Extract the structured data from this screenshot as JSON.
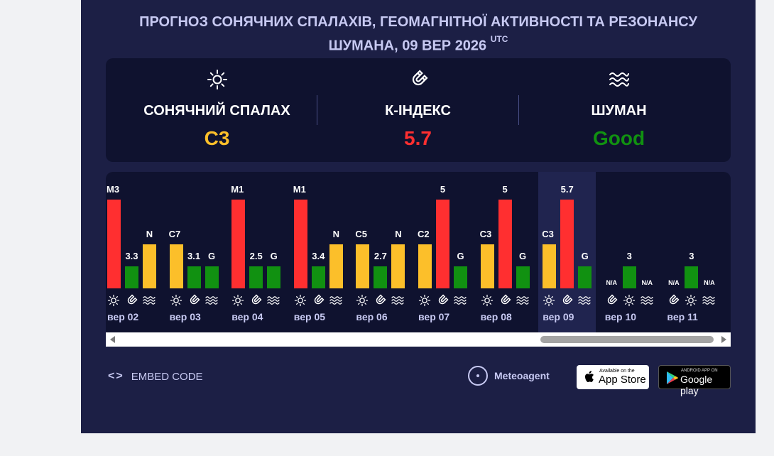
{
  "header": {
    "title_line1": "ПРОГНОЗ СОНЯЧНИХ СПАЛАХІВ, ГЕОМАГНІТНОЇ АКТИВНОСТІ ТА РЕЗОНАНСУ",
    "title_line2": "ШУМАНА, 09 ВЕР 2026",
    "utc": "UTC"
  },
  "summary": {
    "solar": {
      "label": "СОНЯЧНИЙ СПАЛАХ",
      "value": "C3",
      "color": "#fcbf2a",
      "icon": "sun-icon"
    },
    "kindex": {
      "label": "К-ІНДЕКС",
      "value": "5.7",
      "color": "#ff2f30",
      "icon": "magnet-icon"
    },
    "schumann": {
      "label": "ШУМАН",
      "value": "Good",
      "color": "#119111",
      "icon": "waves-icon"
    }
  },
  "colors": {
    "red": "#ff2f30",
    "yellow": "#fcbf2a",
    "green": "#119111"
  },
  "chart_data": {
    "type": "bar",
    "series": [
      {
        "name": "solar-flare",
        "icon": "sun-icon"
      },
      {
        "name": "k-index",
        "icon": "magnet-icon"
      },
      {
        "name": "schumann",
        "icon": "waves-icon"
      }
    ],
    "days": [
      {
        "date": "вер 02",
        "bars": [
          {
            "label": "M3",
            "level": 3,
            "color": "red"
          },
          {
            "label": "3.3",
            "level": 1,
            "color": "green"
          },
          {
            "label": "N",
            "level": 2,
            "color": "yellow"
          }
        ]
      },
      {
        "date": "вер 03",
        "bars": [
          {
            "label": "C7",
            "level": 2,
            "color": "yellow"
          },
          {
            "label": "3.1",
            "level": 1,
            "color": "green"
          },
          {
            "label": "G",
            "level": 1,
            "color": "green"
          }
        ]
      },
      {
        "date": "вер 04",
        "bars": [
          {
            "label": "M1",
            "level": 3,
            "color": "red"
          },
          {
            "label": "2.5",
            "level": 1,
            "color": "green"
          },
          {
            "label": "G",
            "level": 1,
            "color": "green"
          }
        ]
      },
      {
        "date": "вер 05",
        "bars": [
          {
            "label": "M1",
            "level": 3,
            "color": "red"
          },
          {
            "label": "3.4",
            "level": 1,
            "color": "green"
          },
          {
            "label": "N",
            "level": 2,
            "color": "yellow"
          }
        ]
      },
      {
        "date": "вер 06",
        "bars": [
          {
            "label": "C5",
            "level": 2,
            "color": "yellow"
          },
          {
            "label": "2.7",
            "level": 1,
            "color": "green"
          },
          {
            "label": "N",
            "level": 2,
            "color": "yellow"
          }
        ]
      },
      {
        "date": "вер 07",
        "bars": [
          {
            "label": "C2",
            "level": 2,
            "color": "yellow"
          },
          {
            "label": "5",
            "level": 3,
            "color": "red"
          },
          {
            "label": "G",
            "level": 1,
            "color": "green"
          }
        ]
      },
      {
        "date": "вер 08",
        "bars": [
          {
            "label": "C3",
            "level": 2,
            "color": "yellow"
          },
          {
            "label": "5",
            "level": 3,
            "color": "red"
          },
          {
            "label": "G",
            "level": 1,
            "color": "green"
          }
        ]
      },
      {
        "date": "вер 09",
        "today": true,
        "bars": [
          {
            "label": "C3",
            "level": 2,
            "color": "yellow"
          },
          {
            "label": "5.7",
            "level": 3,
            "color": "red"
          },
          {
            "label": "G",
            "level": 1,
            "color": "green"
          }
        ]
      },
      {
        "date": "вер 10",
        "bars": [
          {
            "label": "3",
            "level": 1,
            "color": "green",
            "series": 1
          },
          {
            "label": "N/A",
            "level": 0,
            "series": 0
          },
          {
            "label": "N/A",
            "level": 0,
            "series": 2
          }
        ]
      },
      {
        "date": "вер 11",
        "bars": [
          {
            "label": "3",
            "level": 1,
            "color": "green",
            "series": 1
          },
          {
            "label": "N/A",
            "level": 0,
            "series": 0
          },
          {
            "label": "N/A",
            "level": 0,
            "series": 2
          }
        ]
      }
    ]
  },
  "footer": {
    "embed_label": "EMBED CODE",
    "embed_icon": "code-icon",
    "brand": "Meteoagent",
    "appstore_small": "Available on the",
    "appstore_big": "App Store",
    "gplay_small": "ANDROID APP ON",
    "gplay_big": "Google play"
  }
}
